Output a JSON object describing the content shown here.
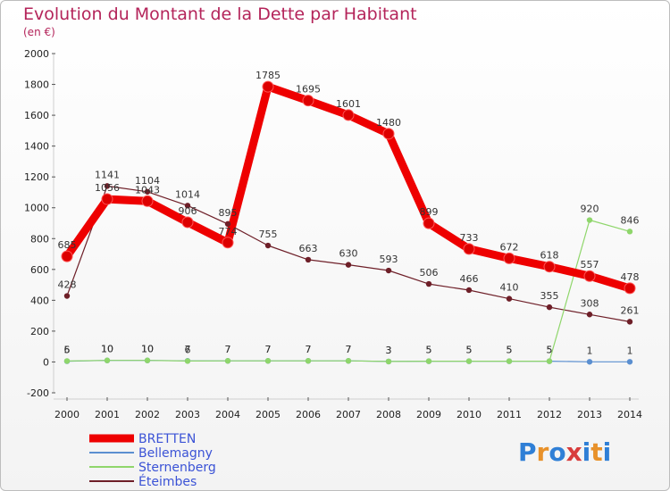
{
  "title": "Evolution du Montant de la Dette par Habitant",
  "unit": "(en €)",
  "logo": {
    "text": [
      "P",
      "r",
      "o",
      "x",
      "i",
      "t",
      "i"
    ],
    "colors": [
      "#2f7fd6",
      "#e8912a",
      "#2f7fd6",
      "#d83c3c",
      "#2f7fd6",
      "#e8912a",
      "#2f7fd6"
    ]
  },
  "chart_data": {
    "type": "line",
    "title": "Evolution du Montant de la Dette par Habitant",
    "ylabel": "(en €)",
    "ylim": [
      -200,
      2000
    ],
    "yticks": [
      -200,
      0,
      200,
      400,
      600,
      800,
      1000,
      1200,
      1400,
      1600,
      1800,
      2000
    ],
    "x": [
      "2000",
      "2001",
      "2002",
      "2003",
      "2004",
      "2005",
      "2006",
      "2007",
      "2008",
      "2009",
      "2010",
      "2011",
      "2012",
      "2013",
      "2014"
    ],
    "grid": false,
    "legend": "bottom-left",
    "series": [
      {
        "name": "BRETTEN",
        "color": "#ee0000",
        "width": 9,
        "values": [
          685,
          1056,
          1043,
          906,
          774,
          1785,
          1695,
          1601,
          1480,
          899,
          733,
          672,
          618,
          557,
          478
        ],
        "labels": [
          "685",
          "1056",
          "1043",
          "906",
          "774",
          "1785",
          "1695",
          "1601",
          "1480",
          "899",
          "733",
          "672",
          "618",
          "557",
          "478"
        ]
      },
      {
        "name": "Bellemagny",
        "color": "#5b8fd0",
        "width": 1.2,
        "values": [
          5,
          10,
          10,
          7,
          7,
          7,
          7,
          7,
          3,
          5,
          5,
          5,
          5,
          1,
          1
        ],
        "labels": [
          "5",
          "10",
          "10",
          "7",
          "7",
          "7",
          "7",
          "7",
          "3",
          "5",
          "5",
          "5",
          "5",
          "1",
          "1"
        ]
      },
      {
        "name": "Sternenberg",
        "color": "#8fd66b",
        "width": 1.2,
        "values": [
          6,
          10,
          10,
          6,
          7,
          7,
          7,
          7,
          3,
          5,
          5,
          5,
          5,
          920,
          846
        ],
        "labels": [
          "6",
          "10",
          "10",
          "6",
          "7",
          "7",
          "7",
          "7",
          "3",
          "5",
          "5",
          "5",
          "5",
          "920",
          "846"
        ]
      },
      {
        "name": "Éteimbes",
        "color": "#6e1f28",
        "width": 1.2,
        "values": [
          428,
          1141,
          1104,
          1014,
          895,
          755,
          663,
          630,
          593,
          506,
          466,
          410,
          355,
          308,
          261
        ],
        "labels": [
          "428",
          "1141",
          "1104",
          "1014",
          "895",
          "755",
          "663",
          "630",
          "593",
          "506",
          "466",
          "410",
          "355",
          "308",
          "261"
        ]
      }
    ]
  }
}
